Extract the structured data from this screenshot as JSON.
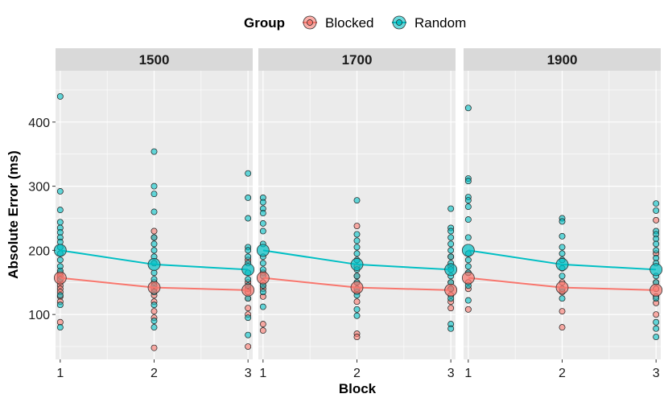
{
  "chart_data": {
    "type": "scatter",
    "xlabel": "Block",
    "ylabel": "Absolute Error (ms)",
    "x_ticks": [
      "1",
      "2",
      "3"
    ],
    "y_ticks": [
      "100",
      "200",
      "300",
      "400"
    ],
    "xlim": [
      0.95,
      3.05
    ],
    "ylim": [
      30,
      480
    ],
    "legend": {
      "title": "Group",
      "position": "top",
      "entries": [
        "Blocked",
        "Random"
      ]
    },
    "colors": {
      "Blocked": "#F8766D",
      "Random": "#00BFC4",
      "panel_bg": "#EBEBEB",
      "strip_bg": "#D9D9D9",
      "grid": "#FFFFFF"
    },
    "panels": [
      {
        "label": "1500",
        "means": {
          "Blocked": [
            {
              "x": 1,
              "y": 157
            },
            {
              "x": 2,
              "y": 142
            },
            {
              "x": 3,
              "y": 138
            }
          ],
          "Random": [
            {
              "x": 1,
              "y": 200
            },
            {
              "x": 2,
              "y": 178
            },
            {
              "x": 3,
              "y": 170
            }
          ]
        },
        "points": {
          "Blocked": [
            {
              "x": 1,
              "y": 165
            },
            {
              "x": 1,
              "y": 160
            },
            {
              "x": 1,
              "y": 150
            },
            {
              "x": 1,
              "y": 145
            },
            {
              "x": 1,
              "y": 140
            },
            {
              "x": 1,
              "y": 135
            },
            {
              "x": 1,
              "y": 128
            },
            {
              "x": 1,
              "y": 120
            },
            {
              "x": 1,
              "y": 88
            },
            {
              "x": 2,
              "y": 230
            },
            {
              "x": 2,
              "y": 220
            },
            {
              "x": 2,
              "y": 150
            },
            {
              "x": 2,
              "y": 140
            },
            {
              "x": 2,
              "y": 130
            },
            {
              "x": 2,
              "y": 120
            },
            {
              "x": 2,
              "y": 105
            },
            {
              "x": 2,
              "y": 95
            },
            {
              "x": 2,
              "y": 48
            },
            {
              "x": 3,
              "y": 185
            },
            {
              "x": 3,
              "y": 150
            },
            {
              "x": 3,
              "y": 140
            },
            {
              "x": 3,
              "y": 135
            },
            {
              "x": 3,
              "y": 125
            },
            {
              "x": 3,
              "y": 110
            },
            {
              "x": 3,
              "y": 100
            },
            {
              "x": 3,
              "y": 50
            }
          ],
          "Random": [
            {
              "x": 1,
              "y": 440
            },
            {
              "x": 1,
              "y": 292
            },
            {
              "x": 1,
              "y": 263
            },
            {
              "x": 1,
              "y": 244
            },
            {
              "x": 1,
              "y": 235
            },
            {
              "x": 1,
              "y": 228
            },
            {
              "x": 1,
              "y": 220
            },
            {
              "x": 1,
              "y": 213
            },
            {
              "x": 1,
              "y": 205
            },
            {
              "x": 1,
              "y": 195
            },
            {
              "x": 1,
              "y": 185
            },
            {
              "x": 1,
              "y": 175
            },
            {
              "x": 1,
              "y": 168
            },
            {
              "x": 1,
              "y": 155
            },
            {
              "x": 1,
              "y": 130
            },
            {
              "x": 1,
              "y": 115
            },
            {
              "x": 1,
              "y": 80
            },
            {
              "x": 2,
              "y": 354
            },
            {
              "x": 2,
              "y": 300
            },
            {
              "x": 2,
              "y": 288
            },
            {
              "x": 2,
              "y": 260
            },
            {
              "x": 2,
              "y": 220
            },
            {
              "x": 2,
              "y": 210
            },
            {
              "x": 2,
              "y": 200
            },
            {
              "x": 2,
              "y": 190
            },
            {
              "x": 2,
              "y": 180
            },
            {
              "x": 2,
              "y": 165
            },
            {
              "x": 2,
              "y": 155
            },
            {
              "x": 2,
              "y": 145
            },
            {
              "x": 2,
              "y": 135
            },
            {
              "x": 2,
              "y": 115
            },
            {
              "x": 2,
              "y": 90
            },
            {
              "x": 2,
              "y": 80
            },
            {
              "x": 3,
              "y": 320
            },
            {
              "x": 3,
              "y": 282
            },
            {
              "x": 3,
              "y": 250
            },
            {
              "x": 3,
              "y": 205
            },
            {
              "x": 3,
              "y": 200
            },
            {
              "x": 3,
              "y": 190
            },
            {
              "x": 3,
              "y": 180
            },
            {
              "x": 3,
              "y": 165
            },
            {
              "x": 3,
              "y": 155
            },
            {
              "x": 3,
              "y": 145
            },
            {
              "x": 3,
              "y": 125
            },
            {
              "x": 3,
              "y": 95
            },
            {
              "x": 3,
              "y": 68
            }
          ]
        }
      },
      {
        "label": "1700",
        "means": {
          "Blocked": [
            {
              "x": 1,
              "y": 157
            },
            {
              "x": 2,
              "y": 142
            },
            {
              "x": 3,
              "y": 138
            }
          ],
          "Random": [
            {
              "x": 1,
              "y": 200
            },
            {
              "x": 2,
              "y": 178
            },
            {
              "x": 3,
              "y": 170
            }
          ]
        },
        "points": {
          "Blocked": [
            {
              "x": 1,
              "y": 165
            },
            {
              "x": 1,
              "y": 150
            },
            {
              "x": 1,
              "y": 145
            },
            {
              "x": 1,
              "y": 140
            },
            {
              "x": 1,
              "y": 128
            },
            {
              "x": 1,
              "y": 85
            },
            {
              "x": 1,
              "y": 75
            },
            {
              "x": 2,
              "y": 238
            },
            {
              "x": 2,
              "y": 175
            },
            {
              "x": 2,
              "y": 160
            },
            {
              "x": 2,
              "y": 150
            },
            {
              "x": 2,
              "y": 135
            },
            {
              "x": 2,
              "y": 120
            },
            {
              "x": 2,
              "y": 70
            },
            {
              "x": 2,
              "y": 65
            },
            {
              "x": 3,
              "y": 190
            },
            {
              "x": 3,
              "y": 175
            },
            {
              "x": 3,
              "y": 150
            },
            {
              "x": 3,
              "y": 140
            },
            {
              "x": 3,
              "y": 130
            },
            {
              "x": 3,
              "y": 120
            },
            {
              "x": 3,
              "y": 110
            }
          ],
          "Random": [
            {
              "x": 1,
              "y": 282
            },
            {
              "x": 1,
              "y": 275
            },
            {
              "x": 1,
              "y": 265
            },
            {
              "x": 1,
              "y": 258
            },
            {
              "x": 1,
              "y": 242
            },
            {
              "x": 1,
              "y": 230
            },
            {
              "x": 1,
              "y": 210
            },
            {
              "x": 1,
              "y": 190
            },
            {
              "x": 1,
              "y": 180
            },
            {
              "x": 1,
              "y": 170
            },
            {
              "x": 1,
              "y": 160
            },
            {
              "x": 1,
              "y": 145
            },
            {
              "x": 1,
              "y": 135
            },
            {
              "x": 1,
              "y": 112
            },
            {
              "x": 2,
              "y": 278
            },
            {
              "x": 2,
              "y": 225
            },
            {
              "x": 2,
              "y": 215
            },
            {
              "x": 2,
              "y": 205
            },
            {
              "x": 2,
              "y": 195
            },
            {
              "x": 2,
              "y": 185
            },
            {
              "x": 2,
              "y": 170
            },
            {
              "x": 2,
              "y": 160
            },
            {
              "x": 2,
              "y": 150
            },
            {
              "x": 2,
              "y": 140
            },
            {
              "x": 2,
              "y": 130
            },
            {
              "x": 2,
              "y": 108
            },
            {
              "x": 2,
              "y": 98
            },
            {
              "x": 3,
              "y": 265
            },
            {
              "x": 3,
              "y": 235
            },
            {
              "x": 3,
              "y": 230
            },
            {
              "x": 3,
              "y": 220
            },
            {
              "x": 3,
              "y": 210
            },
            {
              "x": 3,
              "y": 200
            },
            {
              "x": 3,
              "y": 190
            },
            {
              "x": 3,
              "y": 180
            },
            {
              "x": 3,
              "y": 170
            },
            {
              "x": 3,
              "y": 160
            },
            {
              "x": 3,
              "y": 150
            },
            {
              "x": 3,
              "y": 140
            },
            {
              "x": 3,
              "y": 125
            },
            {
              "x": 3,
              "y": 85
            },
            {
              "x": 3,
              "y": 78
            }
          ]
        }
      },
      {
        "label": "1900",
        "means": {
          "Blocked": [
            {
              "x": 1,
              "y": 157
            },
            {
              "x": 2,
              "y": 142
            },
            {
              "x": 3,
              "y": 138
            }
          ],
          "Random": [
            {
              "x": 1,
              "y": 200
            },
            {
              "x": 2,
              "y": 178
            },
            {
              "x": 3,
              "y": 170
            }
          ]
        },
        "points": {
          "Blocked": [
            {
              "x": 1,
              "y": 165
            },
            {
              "x": 1,
              "y": 150
            },
            {
              "x": 1,
              "y": 140
            },
            {
              "x": 1,
              "y": 108
            },
            {
              "x": 2,
              "y": 150
            },
            {
              "x": 2,
              "y": 135
            },
            {
              "x": 2,
              "y": 105
            },
            {
              "x": 2,
              "y": 80
            },
            {
              "x": 3,
              "y": 247
            },
            {
              "x": 3,
              "y": 195
            },
            {
              "x": 3,
              "y": 150
            },
            {
              "x": 3,
              "y": 140
            },
            {
              "x": 3,
              "y": 128
            },
            {
              "x": 3,
              "y": 118
            },
            {
              "x": 3,
              "y": 100
            }
          ],
          "Random": [
            {
              "x": 1,
              "y": 422
            },
            {
              "x": 1,
              "y": 312
            },
            {
              "x": 1,
              "y": 308
            },
            {
              "x": 1,
              "y": 283
            },
            {
              "x": 1,
              "y": 278
            },
            {
              "x": 1,
              "y": 268
            },
            {
              "x": 1,
              "y": 248
            },
            {
              "x": 1,
              "y": 220
            },
            {
              "x": 1,
              "y": 195
            },
            {
              "x": 1,
              "y": 185
            },
            {
              "x": 1,
              "y": 175
            },
            {
              "x": 1,
              "y": 165
            },
            {
              "x": 1,
              "y": 145
            },
            {
              "x": 1,
              "y": 122
            },
            {
              "x": 2,
              "y": 250
            },
            {
              "x": 2,
              "y": 245
            },
            {
              "x": 2,
              "y": 222
            },
            {
              "x": 2,
              "y": 205
            },
            {
              "x": 2,
              "y": 195
            },
            {
              "x": 2,
              "y": 185
            },
            {
              "x": 2,
              "y": 172
            },
            {
              "x": 2,
              "y": 160
            },
            {
              "x": 2,
              "y": 140
            },
            {
              "x": 2,
              "y": 125
            },
            {
              "x": 3,
              "y": 273
            },
            {
              "x": 3,
              "y": 262
            },
            {
              "x": 3,
              "y": 230
            },
            {
              "x": 3,
              "y": 225
            },
            {
              "x": 3,
              "y": 218
            },
            {
              "x": 3,
              "y": 210
            },
            {
              "x": 3,
              "y": 200
            },
            {
              "x": 3,
              "y": 188
            },
            {
              "x": 3,
              "y": 180
            },
            {
              "x": 3,
              "y": 160
            },
            {
              "x": 3,
              "y": 150
            },
            {
              "x": 3,
              "y": 125
            },
            {
              "x": 3,
              "y": 88
            },
            {
              "x": 3,
              "y": 78
            },
            {
              "x": 3,
              "y": 65
            }
          ]
        }
      }
    ]
  }
}
